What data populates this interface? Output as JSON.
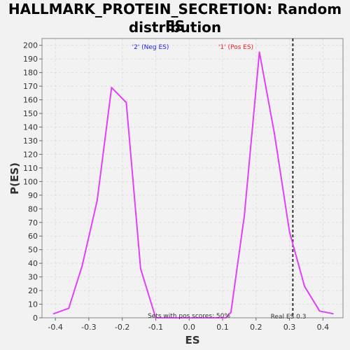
{
  "chart_data": {
    "type": "line",
    "title_line1": "HALLMARK_PROTEIN_SECRETION: Random ES",
    "title_line2": "distribution",
    "xlabel": "ES",
    "ylabel": "P(ES)",
    "xlim": [
      -0.44,
      0.46
    ],
    "ylim": [
      0,
      205
    ],
    "x_ticks": [
      -0.4,
      -0.3,
      -0.2,
      -0.1,
      0.0,
      0.1,
      0.2,
      0.3,
      0.4
    ],
    "x_tick_labels": [
      "-0.4",
      "-0.3",
      "-0.2",
      "-0.1",
      "0.0",
      "0.1",
      "0.2",
      "0.3",
      "0.4"
    ],
    "y_ticks": [
      0,
      10,
      20,
      30,
      40,
      50,
      60,
      70,
      80,
      90,
      100,
      110,
      120,
      130,
      140,
      150,
      160,
      170,
      180,
      190,
      200
    ],
    "grid": true,
    "series": [
      {
        "color": "#e040fb",
        "x": [
          -0.405,
          -0.36,
          -0.32,
          -0.275,
          -0.232,
          -0.188,
          -0.145,
          -0.1,
          0.11,
          0.125,
          0.165,
          0.21,
          0.255,
          0.3,
          0.345,
          0.39,
          0.43
        ],
        "values": [
          3,
          7,
          38,
          86,
          169,
          158,
          36,
          0,
          0,
          4,
          75,
          195,
          135,
          63,
          23,
          5,
          3
        ]
      }
    ],
    "real_es_line": {
      "x": 0.31,
      "color": "#333333",
      "style": "dashed"
    },
    "annotations": {
      "neg_label": "'2' (Neg ES)",
      "neg_color": "#2020ff",
      "pos_label": "'1' (Pos ES)",
      "pos_color": "#ff2020",
      "pos_scores": "Sets with pos scores: 50%",
      "real_es": "Real ES 0.3"
    }
  }
}
